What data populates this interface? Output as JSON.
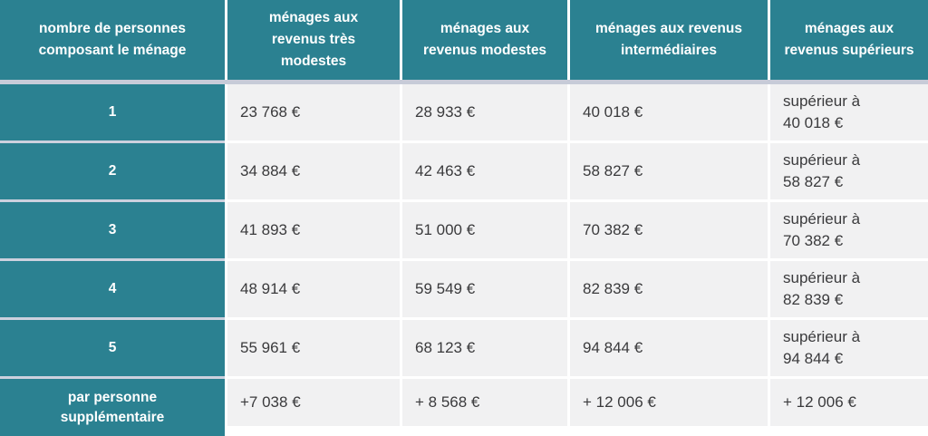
{
  "colors": {
    "teal": "#2b8191",
    "cell_background": "#f1f1f2",
    "header_separator_band": "#c7cbd8",
    "body_text": "#3a3a3c",
    "header_text": "#ffffff"
  },
  "table": {
    "columns": [
      {
        "key": "household",
        "label": "nombre de personnes\ncomposant le ménage"
      },
      {
        "key": "tres_modestes",
        "label": "ménages aux\nrevenus très\nmodestes"
      },
      {
        "key": "modestes",
        "label": "ménages aux\nrevenus modestes"
      },
      {
        "key": "intermediaires",
        "label": "ménages aux revenus\nintermédiaires"
      },
      {
        "key": "superieurs",
        "label": "ménages aux\nrevenus supérieurs"
      }
    ],
    "rows": [
      {
        "household": "1",
        "tres_modestes": "23 768 €",
        "modestes": "28 933 €",
        "intermediaires": "40 018 €",
        "superieurs": "supérieur à\n40 018 €"
      },
      {
        "household": "2",
        "tres_modestes": "34 884 €",
        "modestes": "42 463 €",
        "intermediaires": "58 827 €",
        "superieurs": "supérieur à\n58 827 €"
      },
      {
        "household": "3",
        "tres_modestes": "41 893 €",
        "modestes": "51 000 €",
        "intermediaires": "70 382 €",
        "superieurs": "supérieur à\n70 382 €"
      },
      {
        "household": "4",
        "tres_modestes": "48 914 €",
        "modestes": "59 549 €",
        "intermediaires": "82 839 €",
        "superieurs": "supérieur à\n82 839 €"
      },
      {
        "household": "5",
        "tres_modestes": "55 961 €",
        "modestes": "68 123 €",
        "intermediaires": "94 844 €",
        "superieurs": "supérieur à\n94 844 €"
      },
      {
        "household": "par personne\nsupplémentaire",
        "tres_modestes": "+7 038 €",
        "modestes": "+ 8 568 €",
        "intermediaires": "+ 12 006 €",
        "superieurs": "+ 12 006 €"
      }
    ]
  }
}
